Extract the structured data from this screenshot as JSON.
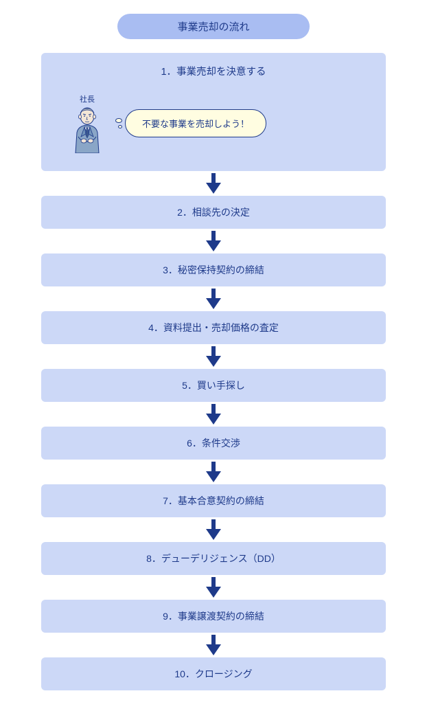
{
  "diagram": {
    "type": "flowchart",
    "title": "事業売却の流れ",
    "colors": {
      "background": "#ffffff",
      "header_bg": "#a9bdf2",
      "step_bg": "#ccd8f7",
      "text": "#1e3a8a",
      "arrow_fill": "#1e3a8a",
      "bubble_bg": "#fffde1",
      "bubble_border": "#1e3a8a"
    },
    "typography": {
      "title_fontsize": 15,
      "step_fontsize": 14,
      "bubble_fontsize": 13,
      "label_fontsize": 11
    },
    "president": {
      "label": "社長",
      "speech": "不要な事業を売却しよう！"
    },
    "steps": [
      {
        "n": 1,
        "label": "1．事業売却を決意する"
      },
      {
        "n": 2,
        "label": "2．相談先の決定"
      },
      {
        "n": 3,
        "label": "3．秘密保持契約の締結"
      },
      {
        "n": 4,
        "label": "4．資料提出・売却価格の査定"
      },
      {
        "n": 5,
        "label": "5．買い手探し"
      },
      {
        "n": 6,
        "label": "6．条件交渉"
      },
      {
        "n": 7,
        "label": "7．基本合意契約の締結"
      },
      {
        "n": 8,
        "label": "8．デューデリジェンス（DD）"
      },
      {
        "n": 9,
        "label": "9．事業譲渡契約の締結"
      },
      {
        "n": 10,
        "label": "10．クロージング"
      }
    ]
  }
}
